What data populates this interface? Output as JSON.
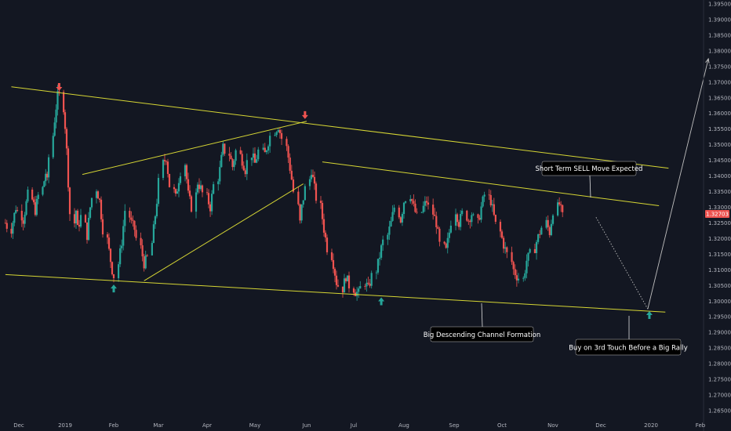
{
  "chart_data": {
    "type": "candlestick",
    "title": "",
    "xlabel": "",
    "ylabel": "",
    "ylim": [
      1.2625,
      1.3975
    ],
    "x_ticks": [
      "Dec",
      "2019",
      "Feb",
      "Mar",
      "Apr",
      "May",
      "Jun",
      "Jul",
      "Aug",
      "Sep",
      "Oct",
      "Nov",
      "Dec",
      "2020",
      "Feb"
    ],
    "y_ticks": [
      "1.39500",
      "1.39000",
      "1.38500",
      "1.38000",
      "1.37500",
      "1.37000",
      "1.36500",
      "1.36000",
      "1.35500",
      "1.35000",
      "1.34500",
      "1.34000",
      "1.33500",
      "1.33000",
      "1.32500",
      "1.32000",
      "1.31500",
      "1.31000",
      "1.30500",
      "1.30000",
      "1.29500",
      "1.29000",
      "1.28500",
      "1.28000",
      "1.27500",
      "1.27000",
      "1.26500"
    ],
    "y_tick_values": [
      1.395,
      1.39,
      1.385,
      1.38,
      1.375,
      1.37,
      1.365,
      1.36,
      1.355,
      1.35,
      1.345,
      1.34,
      1.335,
      1.33,
      1.325,
      1.32,
      1.315,
      1.31,
      1.305,
      1.3,
      1.295,
      1.29,
      1.285,
      1.28,
      1.275,
      1.27,
      1.265
    ],
    "current_price": "1.32703",
    "current_price_value": 1.32703,
    "price_path": [
      [
        0,
        1.325
      ],
      [
        2,
        1.323
      ],
      [
        5,
        1.33
      ],
      [
        8,
        1.326
      ],
      [
        11,
        1.334
      ],
      [
        14,
        1.329
      ],
      [
        17,
        1.336
      ],
      [
        19,
        1.341
      ],
      [
        20,
        1.338
      ],
      [
        21,
        1.346
      ],
      [
        22,
        1.353
      ],
      [
        23,
        1.358
      ],
      [
        24,
        1.362
      ],
      [
        25,
        1.3655
      ],
      [
        26,
        1.366
      ],
      [
        27,
        1.362
      ],
      [
        28,
        1.356
      ],
      [
        29,
        1.348
      ],
      [
        30,
        1.338
      ],
      [
        31,
        1.328
      ],
      [
        32,
        1.325
      ],
      [
        33,
        1.329
      ],
      [
        34,
        1.323
      ],
      [
        36,
        1.327
      ],
      [
        38,
        1.321
      ],
      [
        40,
        1.33
      ],
      [
        42,
        1.336
      ],
      [
        44,
        1.332
      ],
      [
        46,
        1.323
      ],
      [
        48,
        1.316
      ],
      [
        50,
        1.31
      ],
      [
        51,
        1.308
      ],
      [
        52,
        1.312
      ],
      [
        54,
        1.319
      ],
      [
        56,
        1.329
      ],
      [
        58,
        1.325
      ],
      [
        60,
        1.323
      ],
      [
        62,
        1.317
      ],
      [
        64,
        1.312
      ],
      [
        66,
        1.314
      ],
      [
        68,
        1.323
      ],
      [
        70,
        1.332
      ],
      [
        72,
        1.344
      ],
      [
        74,
        1.346
      ],
      [
        76,
        1.337
      ],
      [
        78,
        1.333
      ],
      [
        80,
        1.339
      ],
      [
        82,
        1.344
      ],
      [
        84,
        1.334
      ],
      [
        86,
        1.33
      ],
      [
        88,
        1.338
      ],
      [
        90,
        1.336
      ],
      [
        92,
        1.333
      ],
      [
        94,
        1.33
      ],
      [
        96,
        1.337
      ],
      [
        98,
        1.342
      ],
      [
        100,
        1.349
      ],
      [
        102,
        1.347
      ],
      [
        104,
        1.343
      ],
      [
        106,
        1.348
      ],
      [
        108,
        1.345
      ],
      [
        110,
        1.342
      ],
      [
        112,
        1.347
      ],
      [
        114,
        1.344
      ],
      [
        116,
        1.348
      ],
      [
        118,
        1.347
      ],
      [
        120,
        1.351
      ],
      [
        122,
        1.3545
      ],
      [
        124,
        1.356
      ],
      [
        126,
        1.352
      ],
      [
        128,
        1.346
      ],
      [
        130,
        1.339
      ],
      [
        131,
        1.335
      ],
      [
        132,
        1.33
      ],
      [
        133,
        1.325
      ],
      [
        134,
        1.33
      ],
      [
        136,
        1.336
      ],
      [
        138,
        1.342
      ],
      [
        140,
        1.336
      ],
      [
        142,
        1.33
      ],
      [
        144,
        1.323
      ],
      [
        146,
        1.317
      ],
      [
        148,
        1.312
      ],
      [
        150,
        1.306
      ],
      [
        152,
        1.304
      ],
      [
        154,
        1.308
      ],
      [
        156,
        1.305
      ],
      [
        158,
        1.303
      ],
      [
        160,
        1.3025
      ],
      [
        162,
        1.306
      ],
      [
        164,
        1.304
      ],
      [
        166,
        1.308
      ],
      [
        168,
        1.312
      ],
      [
        170,
        1.317
      ],
      [
        172,
        1.321
      ],
      [
        174,
        1.325
      ],
      [
        176,
        1.33
      ],
      [
        178,
        1.326
      ],
      [
        180,
        1.332
      ],
      [
        182,
        1.334
      ],
      [
        184,
        1.33
      ],
      [
        186,
        1.327
      ],
      [
        188,
        1.33
      ],
      [
        190,
        1.332
      ],
      [
        192,
        1.328
      ],
      [
        194,
        1.325
      ],
      [
        196,
        1.318
      ],
      [
        198,
        1.316
      ],
      [
        200,
        1.322
      ],
      [
        202,
        1.329
      ],
      [
        204,
        1.325
      ],
      [
        206,
        1.328
      ],
      [
        208,
        1.326
      ],
      [
        210,
        1.328
      ],
      [
        212,
        1.325
      ],
      [
        214,
        1.33
      ],
      [
        216,
        1.334
      ],
      [
        218,
        1.332
      ],
      [
        220,
        1.327
      ],
      [
        222,
        1.322
      ],
      [
        224,
        1.318
      ],
      [
        226,
        1.315
      ],
      [
        228,
        1.31
      ],
      [
        230,
        1.308
      ],
      [
        232,
        1.307
      ],
      [
        234,
        1.313
      ],
      [
        236,
        1.315
      ],
      [
        238,
        1.319
      ],
      [
        240,
        1.322
      ],
      [
        242,
        1.325
      ],
      [
        244,
        1.322
      ],
      [
        246,
        1.329
      ],
      [
        248,
        1.331
      ],
      [
        250,
        1.327
      ]
    ],
    "trendlines": [
      {
        "name": "channel-upper",
        "points": [
          [
            "2018-11-26",
            1.3685
          ],
          [
            "2020-01-12",
            1.3425
          ]
        ]
      },
      {
        "name": "channel-lower",
        "points": [
          [
            "2018-11-22",
            1.3085
          ],
          [
            "2020-01-10",
            1.2965
          ]
        ]
      },
      {
        "name": "inner-upper",
        "points": [
          [
            "2019-06-11",
            1.3445
          ],
          [
            "2020-01-06",
            1.3305
          ]
        ]
      },
      {
        "name": "wedge-upper",
        "points": [
          [
            "2019-01-12",
            1.3405
          ],
          [
            "2019-06-01",
            1.3575
          ]
        ]
      },
      {
        "name": "wedge-lower",
        "points": [
          [
            "2019-02-20",
            1.3065
          ],
          [
            "2019-05-30",
            1.3375
          ]
        ]
      }
    ],
    "projection": [
      [
        "2019-11-28",
        1.3268
      ],
      [
        "2019-12-30",
        1.2975
      ],
      [
        "2020-02-06",
        1.3775
      ]
    ],
    "markers": [
      {
        "type": "arrow-down",
        "date": "2018-12-28",
        "price": 1.3682,
        "color": "#ef5350"
      },
      {
        "type": "arrow-down",
        "date": "2019-05-31",
        "price": 1.3592,
        "color": "#ef5350"
      },
      {
        "type": "arrow-up",
        "date": "2019-02-01",
        "price": 1.3043,
        "color": "#26a69a"
      },
      {
        "type": "arrow-up",
        "date": "2019-07-18",
        "price": 1.3002,
        "color": "#26a69a"
      },
      {
        "type": "arrow-up",
        "date": "2019-12-31",
        "price": 1.2958,
        "color": "#26a69a"
      }
    ],
    "annotations": [
      {
        "text": "Short Term SELL Move Expected"
      },
      {
        "text": "Big Descending Channel Formation"
      },
      {
        "text": "Buy on 3rd Touch Before a Big Rally"
      }
    ],
    "colors": {
      "background": "#131722",
      "up": "#26a69a",
      "down": "#ef5350",
      "trendline": "#d6d634",
      "projection": "#c0c0c0",
      "axis_text": "#b2b5be",
      "price_tag": "#ef5350",
      "annotation_bg": "#000000"
    },
    "grid": false
  }
}
